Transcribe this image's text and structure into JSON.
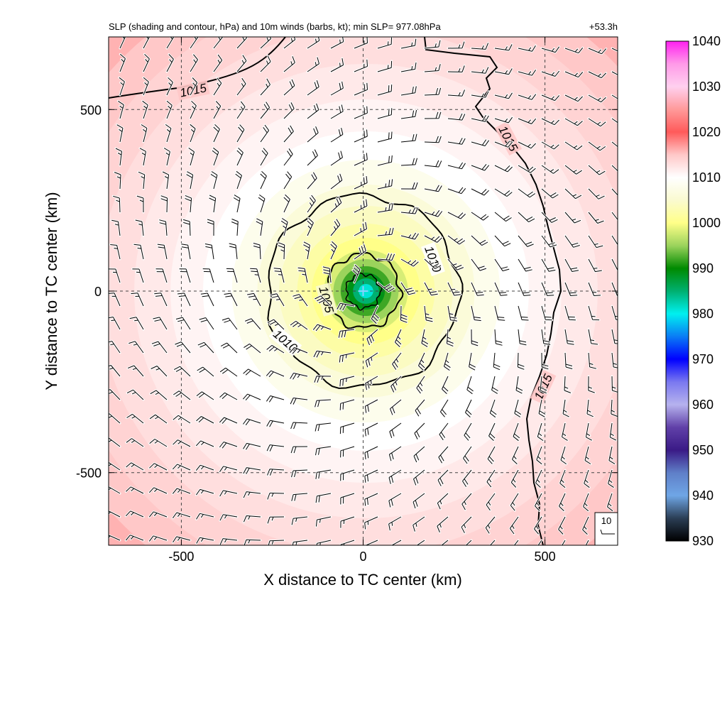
{
  "chart_data": {
    "type": "heatmap",
    "title": "SLP (shading and contour, hPa) and 10m winds (barbs, kt); min SLP= 977.08hPa",
    "time_label": "+53.3h",
    "xlabel": "X distance to TC center (km)",
    "ylabel": "Y distance to TC center (km)",
    "xlim": [
      -700,
      700
    ],
    "ylim": [
      -700,
      700
    ],
    "x_ticks": [
      -500,
      0,
      500
    ],
    "y_ticks": [
      -500,
      0,
      500
    ],
    "x_tick_labels": [
      "-500",
      "0",
      "500"
    ],
    "y_tick_labels": [
      "-500",
      "0",
      "500"
    ],
    "grid": "dashed",
    "center": {
      "x": 0,
      "y": 0
    },
    "min_slp_hpa": 977.08,
    "colorbar": {
      "min": 930,
      "max": 1040,
      "tick_values": [
        1040,
        1030,
        1020,
        1010,
        1000,
        990,
        980,
        970,
        960,
        950,
        940,
        930
      ],
      "tick_labels": [
        "1040",
        "1030",
        "1020",
        "1010",
        "1000",
        "990",
        "980",
        "970",
        "960",
        "950",
        "940",
        "930"
      ],
      "stops": [
        {
          "v": 930,
          "c": "#000000"
        },
        {
          "v": 935,
          "c": "#2b3e55"
        },
        {
          "v": 940,
          "c": "#6fa6e6"
        },
        {
          "v": 945,
          "c": "#5f7fc8"
        },
        {
          "v": 950,
          "c": "#3a1a86"
        },
        {
          "v": 955,
          "c": "#6040a8"
        },
        {
          "v": 960,
          "c": "#b6b2ee"
        },
        {
          "v": 965,
          "c": "#7a78f0"
        },
        {
          "v": 970,
          "c": "#0000ff"
        },
        {
          "v": 975,
          "c": "#0a7cf5"
        },
        {
          "v": 980,
          "c": "#00f0f0"
        },
        {
          "v": 985,
          "c": "#00b070"
        },
        {
          "v": 990,
          "c": "#008a00"
        },
        {
          "v": 995,
          "c": "#9bd35c"
        },
        {
          "v": 1000,
          "c": "#ffff88"
        },
        {
          "v": 1005,
          "c": "#fafad0"
        },
        {
          "v": 1010,
          "c": "#ffffff"
        },
        {
          "v": 1015,
          "c": "#ffc8c8"
        },
        {
          "v": 1020,
          "c": "#ff5a5a"
        },
        {
          "v": 1025,
          "c": "#ff9a9a"
        },
        {
          "v": 1030,
          "c": "#ffd0ef"
        },
        {
          "v": 1035,
          "c": "#ff9ae8"
        },
        {
          "v": 1040,
          "c": "#ff20f0"
        }
      ]
    },
    "contours": [
      {
        "level": 1005,
        "label": "1005"
      },
      {
        "level": 1010,
        "label": "1010"
      },
      {
        "level": 1015,
        "label": "1015"
      }
    ],
    "wind_key": {
      "label": "10",
      "units": "kt"
    }
  }
}
